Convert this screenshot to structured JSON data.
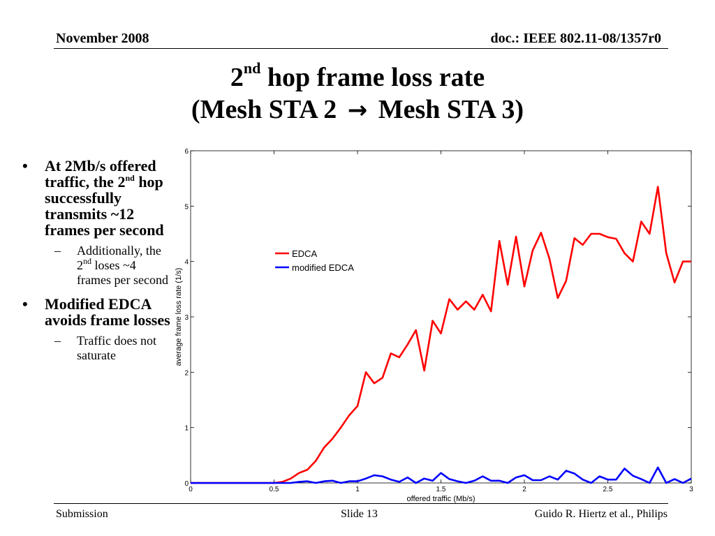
{
  "header": {
    "left": "November 2008",
    "right": "doc.: IEEE 802.11-08/1357r0"
  },
  "title": {
    "line1_num": "2",
    "line1_sup": "nd",
    "line1_rest": " hop frame loss rate",
    "line2_a": "(Mesh STA 2",
    "line2_arrow": "→",
    "line2_b": "Mesh STA 3)"
  },
  "bullets": {
    "b1_text_a": "At 2Mb/s offered traffic, the 2",
    "b1_sup": "nd",
    "b1_text_b": " hop successfully transmits ~12 frames per second",
    "b1_sub_a": "Additionally, the 2",
    "b1_sub_sup": "nd",
    "b1_sub_b": " loses ~4 frames per second",
    "b2_text": "Modified EDCA avoids frame losses",
    "b2_sub": "Traffic does not saturate"
  },
  "footer": {
    "left": "Submission",
    "center": "Slide 13",
    "right": "Guido R. Hiertz et al., Philips"
  },
  "chart_data": {
    "type": "line",
    "xlabel": "offered traffic (Mb/s)",
    "ylabel": "average frame loss rate (1/s)",
    "xlim": [
      0,
      3
    ],
    "ylim": [
      0,
      6
    ],
    "xticks": [
      "0",
      "0.5",
      "1",
      "1.5",
      "2",
      "2.5",
      "3"
    ],
    "yticks": [
      "0",
      "1",
      "2",
      "3",
      "4",
      "5",
      "6"
    ],
    "legend_position": "upper-left inside plot",
    "grid": false,
    "x": [
      0,
      0.05,
      0.1,
      0.15,
      0.2,
      0.25,
      0.3,
      0.35,
      0.4,
      0.45,
      0.5,
      0.55,
      0.6,
      0.65,
      0.7,
      0.75,
      0.8,
      0.85,
      0.9,
      0.95,
      1.0,
      1.05,
      1.1,
      1.15,
      1.2,
      1.25,
      1.3,
      1.35,
      1.4,
      1.45,
      1.5,
      1.55,
      1.6,
      1.65,
      1.7,
      1.75,
      1.8,
      1.85,
      1.9,
      1.95,
      2.0,
      2.05,
      2.1,
      2.15,
      2.2,
      2.25,
      2.3,
      2.35,
      2.4,
      2.45,
      2.5,
      2.55,
      2.6,
      2.65,
      2.7,
      2.75,
      2.8,
      2.85,
      2.9,
      2.95,
      3.0
    ],
    "series": [
      {
        "name": "EDCA",
        "color": "#ff0000",
        "values": [
          0,
          0,
          0,
          0,
          0,
          0,
          0,
          0,
          0,
          0,
          0,
          0.02,
          0.08,
          0.18,
          0.24,
          0.4,
          0.64,
          0.8,
          1.0,
          1.22,
          1.39,
          2.0,
          1.8,
          1.9,
          2.34,
          2.27,
          2.5,
          2.76,
          2.03,
          2.93,
          2.7,
          3.32,
          3.13,
          3.28,
          3.13,
          3.4,
          3.1,
          4.37,
          3.58,
          4.45,
          3.55,
          4.2,
          4.52,
          4.05,
          3.34,
          3.65,
          4.42,
          4.3,
          4.5,
          4.5,
          4.44,
          4.41,
          4.15,
          4.0,
          4.72,
          4.5,
          5.35,
          4.15,
          3.62,
          4.0,
          4.0
        ]
      },
      {
        "name": "modified EDCA",
        "color": "#0000ff",
        "values": [
          0,
          0,
          0,
          0,
          0,
          0,
          0,
          0,
          0,
          0,
          0,
          0,
          0,
          0.02,
          0.03,
          0,
          0.03,
          0.04,
          0,
          0.03,
          0.03,
          0.08,
          0.14,
          0.12,
          0.06,
          0.02,
          0.1,
          0,
          0.08,
          0.04,
          0.18,
          0.07,
          0.03,
          0,
          0.04,
          0.12,
          0.04,
          0.04,
          0,
          0.1,
          0.14,
          0.05,
          0.05,
          0.12,
          0.06,
          0.22,
          0.17,
          0.06,
          0,
          0.12,
          0.06,
          0.06,
          0.26,
          0.13,
          0.07,
          0,
          0.28,
          0,
          0.07,
          0,
          0.08
        ]
      }
    ]
  }
}
